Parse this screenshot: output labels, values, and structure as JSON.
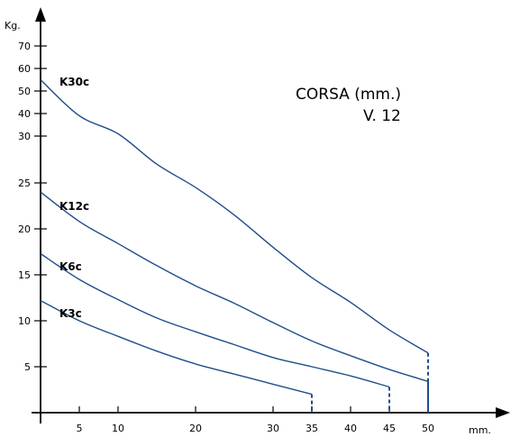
{
  "chart_data": {
    "type": "line",
    "title": "",
    "xlabel": "mm.",
    "ylabel": "Kg.",
    "annotation": [
      "CORSA (mm.)",
      "V. 12"
    ],
    "xticks": [
      5,
      10,
      20,
      30,
      35,
      40,
      45,
      50
    ],
    "yticks": [
      5,
      10,
      15,
      20,
      25,
      30,
      40,
      50,
      60,
      70
    ],
    "grid": false,
    "series": [
      {
        "name": "K30c",
        "end_x": 50,
        "points": [
          [
            0,
            55
          ],
          [
            5,
            39
          ],
          [
            10,
            31
          ],
          [
            15,
            27
          ],
          [
            20,
            24.5
          ],
          [
            25,
            21.5
          ],
          [
            30,
            18
          ],
          [
            35,
            14.7
          ],
          [
            40,
            12
          ],
          [
            45,
            9
          ],
          [
            50,
            6.5
          ]
        ]
      },
      {
        "name": "K12c",
        "end_x": 50,
        "points": [
          [
            0,
            24
          ],
          [
            5,
            20.8
          ],
          [
            10,
            18.4
          ],
          [
            15,
            16
          ],
          [
            20,
            13.8
          ],
          [
            25,
            11.9
          ],
          [
            30,
            9.8
          ],
          [
            35,
            7.8
          ],
          [
            40,
            6.2
          ],
          [
            45,
            4.7
          ],
          [
            50,
            3.4
          ]
        ]
      },
      {
        "name": "K6c",
        "end_x": 45,
        "points": [
          [
            0,
            17.3
          ],
          [
            5,
            14.5
          ],
          [
            10,
            12.3
          ],
          [
            15,
            10.3
          ],
          [
            20,
            8.8
          ],
          [
            25,
            7.4
          ],
          [
            30,
            6
          ],
          [
            35,
            5
          ],
          [
            40,
            4
          ],
          [
            45,
            2.8
          ]
        ]
      },
      {
        "name": "K3c",
        "end_x": 35,
        "points": [
          [
            0,
            12.2
          ],
          [
            5,
            10
          ],
          [
            10,
            8.3
          ],
          [
            15,
            6.7
          ],
          [
            20,
            5.3
          ],
          [
            25,
            4.2
          ],
          [
            30,
            3.1
          ],
          [
            35,
            2
          ]
        ]
      }
    ]
  }
}
